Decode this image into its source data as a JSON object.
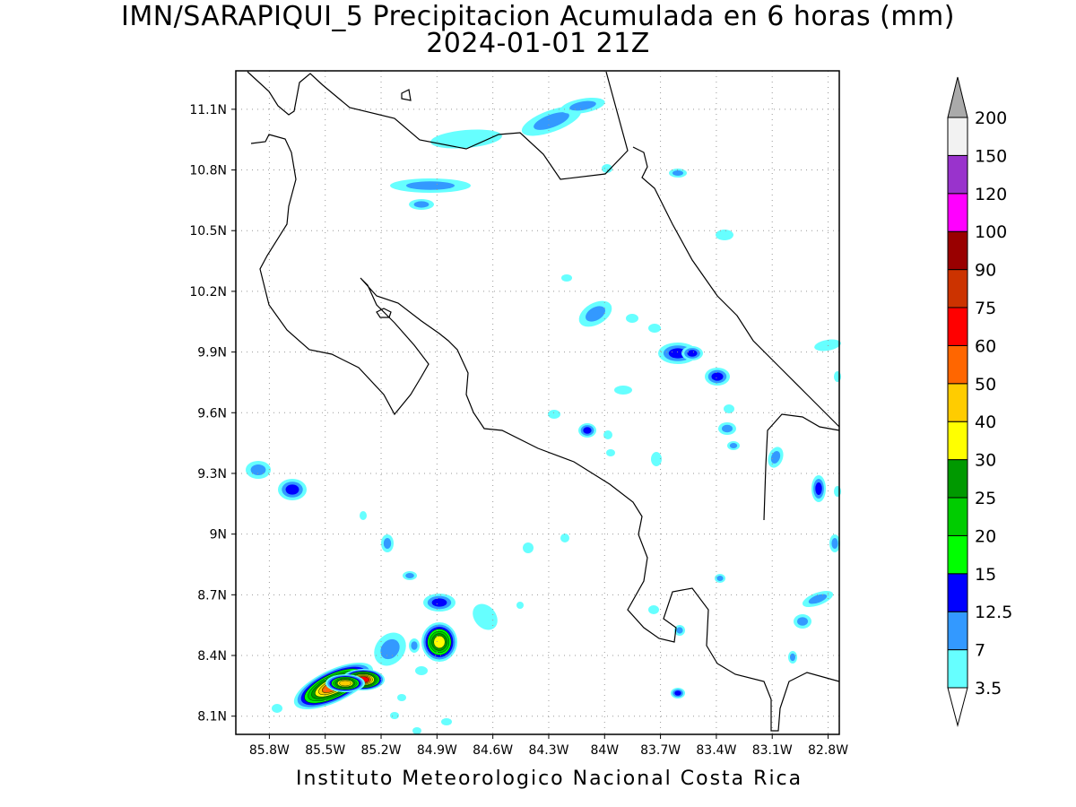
{
  "title": {
    "line1": "IMN/SARAPIQUI_5 Precipitacion Acumulada en 6 horas (mm)",
    "line2": "2024-01-01 21Z"
  },
  "footer": "Instituto Meteorologico Nacional Costa Rica",
  "map": {
    "lon_range": [
      -85.98,
      -82.74
    ],
    "lat_range": [
      8.01,
      11.29
    ],
    "lat_ticks": [
      "11.1N",
      "10.8N",
      "10.5N",
      "10.2N",
      "9.9N",
      "9.6N",
      "9.3N",
      "9N",
      "8.7N",
      "8.4N",
      "8.1N"
    ],
    "lat_values": [
      11.1,
      10.8,
      10.5,
      10.2,
      9.9,
      9.6,
      9.3,
      9.0,
      8.7,
      8.4,
      8.1
    ],
    "lon_ticks": [
      "85.8W",
      "85.5W",
      "85.2W",
      "84.9W",
      "84.6W",
      "84.3W",
      "84W",
      "83.7W",
      "83.4W",
      "83.1W",
      "82.8W"
    ],
    "lon_values": [
      -85.8,
      -85.5,
      -85.2,
      -84.9,
      -84.6,
      -84.3,
      -84.0,
      -83.7,
      -83.4,
      -83.1,
      -82.8
    ],
    "grid": "dotted"
  },
  "colorbar": {
    "levels": [
      "3.5",
      "7",
      "12.5",
      "15",
      "20",
      "25",
      "30",
      "40",
      "50",
      "60",
      "75",
      "90",
      "100",
      "120",
      "150",
      "200"
    ],
    "colors": [
      "#66ffff",
      "#3399ff",
      "#0000ff",
      "#00ff00",
      "#00cc00",
      "#009900",
      "#ffff00",
      "#ffcc00",
      "#ff6600",
      "#ff0000",
      "#cc3300",
      "#990000",
      "#ff00ff",
      "#9933cc",
      "#f2f2f2"
    ],
    "top_arrow_color": "#aaaaaa",
    "bottom_arrow_color": "#ffffff"
  }
}
